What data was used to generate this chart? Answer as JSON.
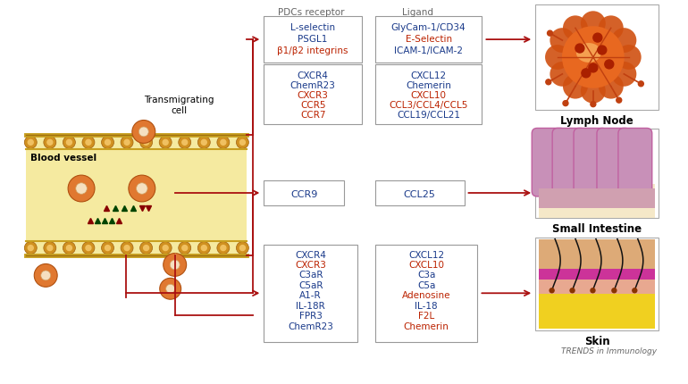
{
  "trends_label": "TRENDS in Immunology",
  "header_receptor": "PDCs receptor",
  "header_ligand": "Ligand",
  "blue": "#1a3a8a",
  "red": "#bb2200",
  "gray": "#808080",
  "dark_gray": "#666666",
  "box_edge": "#999999",
  "arrow_color": "#aa1111",
  "bg_color": "#FFFFFF",
  "lymph_node_label": "Lymph Node",
  "small_intestine_label": "Small Intestine",
  "skin_label": "Skin",
  "blood_vessel_label": "Blood vessel",
  "transmigrating_label": "Transmigrating\ncell",
  "vessel_fill": "#F5EAA0",
  "vessel_edge": "#C8A020",
  "cell_outer": "#E07830",
  "cell_inner": "#F0C080",
  "cell_edge": "#A04010"
}
